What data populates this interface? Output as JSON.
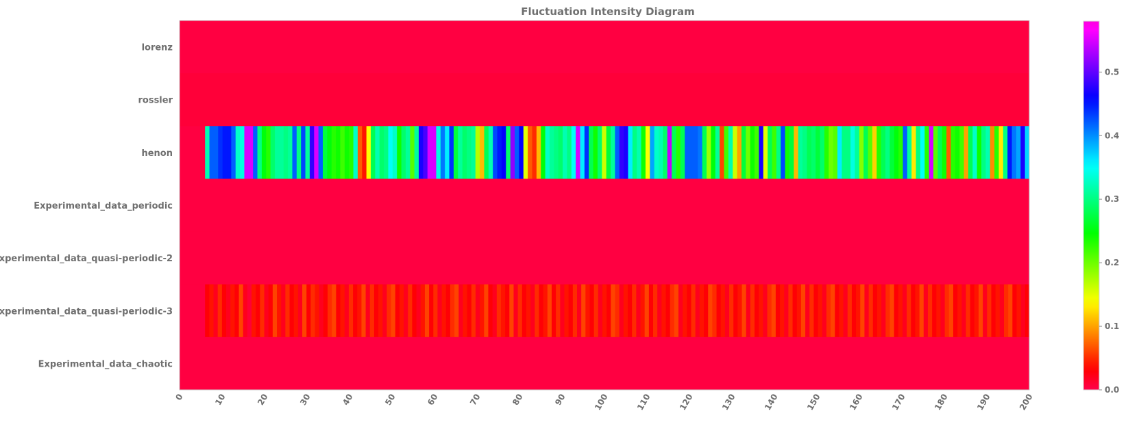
{
  "chart_data": {
    "type": "heatmap",
    "title": "Fluctuation Intensity Diagram",
    "xlabel": "",
    "ylabel": "",
    "colormap": "gist_rainbow_r",
    "rows": [
      "lorenz",
      "rossler",
      "henon",
      "Experimental_data_periodic",
      "Experimental_data_quasi-periodic-2",
      "Experimental_data_quasi-periodic-3",
      "Experimental_data_chaotic"
    ],
    "x_start": 0,
    "x_end": 200,
    "x_ticks": [
      "0",
      "10",
      "20",
      "30",
      "40",
      "50",
      "60",
      "70",
      "80",
      "90",
      "100",
      "110",
      "120",
      "130",
      "140",
      "150",
      "160",
      "170",
      "180",
      "190",
      "200"
    ],
    "colorbar": {
      "min": 0.0,
      "max": 0.58,
      "ticks": [
        "0.0",
        "0.1",
        "0.2",
        "0.3",
        "0.4",
        "0.5"
      ]
    },
    "series": [
      {
        "name": "lorenz",
        "start": 0,
        "values": [
          0.005
        ]
      },
      {
        "name": "rossler",
        "start": 6,
        "values": [
          0.008
        ]
      },
      {
        "name": "henon",
        "start": 6,
        "values": [
          0.32,
          0.42,
          0.42,
          0.44,
          0.45,
          0.45,
          0.42,
          0.33,
          0.34,
          0.55,
          0.55,
          0.42,
          0.3,
          0.25,
          0.23,
          0.29,
          0.31,
          0.31,
          0.3,
          0.31,
          0.42,
          0.3,
          0.43,
          0.31,
          0.48,
          0.55,
          0.42,
          0.27,
          0.25,
          0.23,
          0.24,
          0.22,
          0.24,
          0.23,
          0.33,
          0.07,
          0.04,
          0.14,
          0.28,
          0.32,
          0.29,
          0.3,
          0.35,
          0.33,
          0.24,
          0.29,
          0.31,
          0.21,
          0.31,
          0.47,
          0.49,
          0.55,
          0.55,
          0.34,
          0.41,
          0.36,
          0.44,
          0.27,
          0.31,
          0.29,
          0.3,
          0.31,
          0.17,
          0.11,
          0.28,
          0.32,
          0.43,
          0.45,
          0.46,
          0.29,
          0.52,
          0.42,
          0.46,
          0.15,
          0.07,
          0.05,
          0.11,
          0.25,
          0.33,
          0.31,
          0.3,
          0.29,
          0.32,
          0.3,
          0.35,
          0.55,
          0.36,
          0.44,
          0.28,
          0.24,
          0.29,
          0.16,
          0.27,
          0.31,
          0.42,
          0.48,
          0.47,
          0.36,
          0.3,
          0.32,
          0.24,
          0.14,
          0.39,
          0.33,
          0.32,
          0.29,
          0.54,
          0.28,
          0.23,
          0.28,
          0.42,
          0.42,
          0.42,
          0.41,
          0.28,
          0.18,
          0.25,
          0.31,
          0.06,
          0.22,
          0.32,
          0.16,
          0.1,
          0.27,
          0.2,
          0.24,
          0.22,
          0.47,
          0.15,
          0.28,
          0.22,
          0.3,
          0.43,
          0.24,
          0.27,
          0.11,
          0.31,
          0.3,
          0.28,
          0.29,
          0.27,
          0.29,
          0.23,
          0.2,
          0.21,
          0.36,
          0.3,
          0.3,
          0.34,
          0.31,
          0.19,
          0.28,
          0.21,
          0.12,
          0.23,
          0.28,
          0.3,
          0.27,
          0.25,
          0.23,
          0.42,
          0.31,
          0.13,
          0.3,
          0.35,
          0.23,
          0.55,
          0.21,
          0.28,
          0.24,
          0.07,
          0.23,
          0.24,
          0.22,
          0.1,
          0.28,
          0.33,
          0.24,
          0.3,
          0.32,
          0.09,
          0.23,
          0.13,
          0.3,
          0.45,
          0.41,
          0.39,
          0.47,
          0.37
        ]
      },
      {
        "name": "Experimental_data_periodic",
        "start": 0,
        "values": [
          0.005
        ]
      },
      {
        "name": "Experimental_data_quasi-periodic-2",
        "start": 0,
        "values": [
          0.005
        ]
      },
      {
        "name": "Experimental_data_quasi-periodic-3",
        "start": 6,
        "values": [
          0.03,
          0.04,
          0.02,
          0.05,
          0.03,
          0.02,
          0.04,
          0.03,
          0.06,
          0.02,
          0.01,
          0.04,
          0.03,
          0.05,
          0.02,
          0.03,
          0.06,
          0.04,
          0.02,
          0.05,
          0.03,
          0.04,
          0.02,
          0.06,
          0.03,
          0.05,
          0.04,
          0.02,
          0.03,
          0.05,
          0.06,
          0.03,
          0.04,
          0.02,
          0.05,
          0.03,
          0.04,
          0.06,
          0.02,
          0.05,
          0.03,
          0.04,
          0.02,
          0.05,
          0.06,
          0.03,
          0.04,
          0.02,
          0.05,
          0.03,
          0.02,
          0.04,
          0.06,
          0.03,
          0.05,
          0.02,
          0.04,
          0.03,
          0.05,
          0.06,
          0.02,
          0.04,
          0.03,
          0.05,
          0.02,
          0.04,
          0.06,
          0.03,
          0.02,
          0.05,
          0.04,
          0.03,
          0.06,
          0.02,
          0.05,
          0.03,
          0.04,
          0.02,
          0.05,
          0.03,
          0.04,
          0.06,
          0.03,
          0.05,
          0.02,
          0.04,
          0.03,
          0.05,
          0.02,
          0.06,
          0.04,
          0.03,
          0.05,
          0.02,
          0.04,
          0.03,
          0.06,
          0.05,
          0.02,
          0.04,
          0.03,
          0.05,
          0.02,
          0.04,
          0.06,
          0.03,
          0.05,
          0.02,
          0.04,
          0.03,
          0.05,
          0.06,
          0.02,
          0.04,
          0.03,
          0.05,
          0.02,
          0.04,
          0.03,
          0.06,
          0.05,
          0.03,
          0.04,
          0.02,
          0.05,
          0.03,
          0.04,
          0.06,
          0.02,
          0.05,
          0.03,
          0.04,
          0.02,
          0.05,
          0.06,
          0.03,
          0.04,
          0.02,
          0.05,
          0.03,
          0.04,
          0.06,
          0.02,
          0.05,
          0.03,
          0.04,
          0.02,
          0.05,
          0.06,
          0.03,
          0.04,
          0.02,
          0.05,
          0.03,
          0.04,
          0.06,
          0.02,
          0.05,
          0.03,
          0.04,
          0.02,
          0.05,
          0.06,
          0.03,
          0.04,
          0.02,
          0.05,
          0.03,
          0.04,
          0.06,
          0.02,
          0.05,
          0.03,
          0.04,
          0.02,
          0.05,
          0.06,
          0.03,
          0.04,
          0.02,
          0.05,
          0.03,
          0.04,
          0.06,
          0.02,
          0.05,
          0.03,
          0.04,
          0.02,
          0.05,
          0.06,
          0.03,
          0.04,
          0.02,
          0.03
        ]
      },
      {
        "name": "Experimental_data_chaotic",
        "start": 0,
        "values": [
          0.005
        ]
      }
    ]
  }
}
